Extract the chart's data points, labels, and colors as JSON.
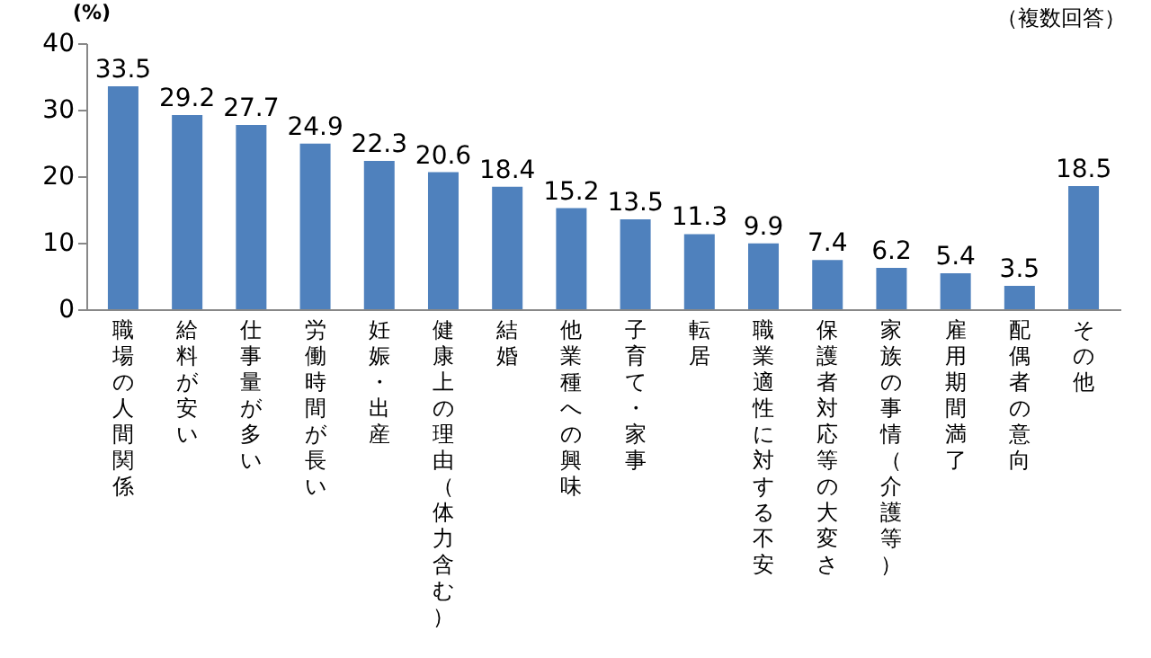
{
  "chart_data": {
    "type": "bar",
    "ylabel": "(%)",
    "annotations": [
      "（複数回答）"
    ],
    "categories": [
      "職場の人間関係",
      "給料が安い",
      "仕事量が多い",
      "労働時間が長い",
      "妊娠・出産",
      "健康上の理由（体力含む）",
      "結婚",
      "他業種への興味",
      "子育て・家事",
      "転居",
      "職業適性に対する不安",
      "保護者対応等の大変さ",
      "家族の事情（介護等）",
      "雇用期間満了",
      "配偶者の意向",
      "その他"
    ],
    "values": [
      33.5,
      29.2,
      27.7,
      24.9,
      22.3,
      20.6,
      18.4,
      15.2,
      13.5,
      11.3,
      9.9,
      7.4,
      6.2,
      5.4,
      3.5,
      18.5
    ],
    "color": "#4f81bd",
    "ylim": [
      0,
      40
    ],
    "yticks": [
      0,
      10,
      20,
      30,
      40
    ],
    "grid": false,
    "data_labels": true
  }
}
